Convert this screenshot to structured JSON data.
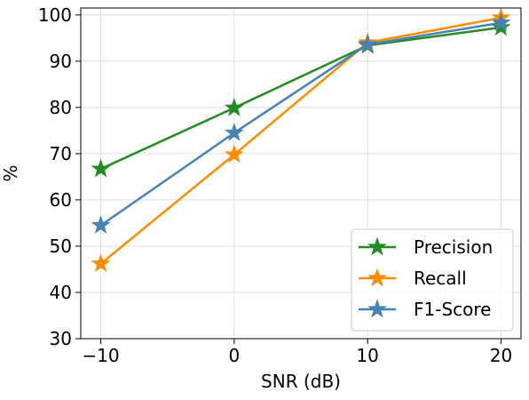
{
  "chart_data": {
    "type": "line",
    "title": "",
    "xlabel": "SNR (dB)",
    "ylabel": "%",
    "x": [
      -10,
      0,
      10,
      20
    ],
    "x_tick_labels": [
      "−10",
      "0",
      "10",
      "20"
    ],
    "y_ticks": [
      30,
      40,
      50,
      60,
      70,
      80,
      90,
      100
    ],
    "y_tick_labels": [
      "30",
      "40",
      "50",
      "60",
      "70",
      "80",
      "90",
      "100"
    ],
    "xlim": [
      -11.5,
      21.5
    ],
    "ylim": [
      30,
      101.5
    ],
    "grid": true,
    "legend_position": "lower-right",
    "marker": "star",
    "series": [
      {
        "name": "Precision",
        "color": "#228B22",
        "values": [
          66.7,
          79.9,
          93.4,
          97.3
        ]
      },
      {
        "name": "Recall",
        "color": "#FF8C00",
        "values": [
          46.2,
          69.8,
          94.0,
          99.4
        ]
      },
      {
        "name": "F1-Score",
        "color": "#4682B4",
        "values": [
          54.5,
          74.5,
          93.6,
          98.3
        ]
      }
    ]
  }
}
